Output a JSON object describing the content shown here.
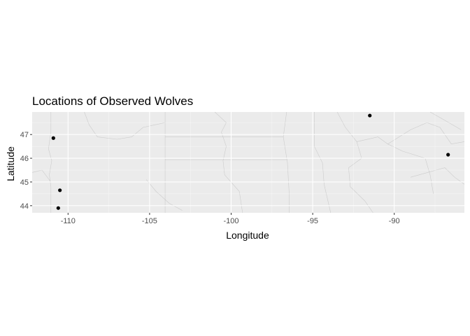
{
  "chart_data": {
    "type": "scatter",
    "title": "Locations of Observed Wolves",
    "xlabel": "Longitude",
    "ylabel": "Latitude",
    "xlim": [
      -112.2,
      -85.7
    ],
    "ylim": [
      43.7,
      47.95
    ],
    "xticks": [
      -110,
      -105,
      -100,
      -95,
      -90
    ],
    "xtick_labels": [
      "-110",
      "-105",
      "-100",
      "-95",
      "-90"
    ],
    "yticks": [
      44,
      45,
      46,
      47
    ],
    "ytick_labels": [
      "44",
      "45",
      "46",
      "47"
    ],
    "grid": true,
    "legend": "none",
    "colors": {
      "panel": "#ebebeb",
      "grid": "#ffffff",
      "point": "#000000",
      "basemap": "#b3b3b3"
    },
    "points": [
      {
        "x": -110.9,
        "y": 46.85
      },
      {
        "x": -110.5,
        "y": 44.65
      },
      {
        "x": -110.6,
        "y": 43.9
      },
      {
        "x": -91.5,
        "y": 47.8
      },
      {
        "x": -86.7,
        "y": 46.15
      }
    ]
  }
}
